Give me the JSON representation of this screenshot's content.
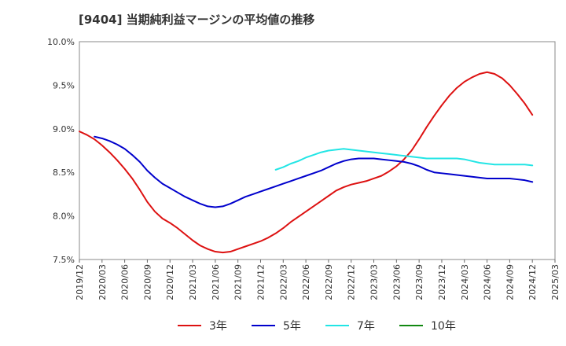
{
  "chart_data": {
    "type": "line",
    "title": "[9404]  当期純利益マージンの平均値の推移",
    "xlabel": "",
    "ylabel": "",
    "ylim": [
      7.5,
      10.0
    ],
    "y_ticks": [
      7.5,
      8.0,
      8.5,
      9.0,
      9.5,
      10.0
    ],
    "y_tick_labels": [
      "7.5%",
      "8.0%",
      "8.5%",
      "9.0%",
      "9.5%",
      "10.0%"
    ],
    "x_tick_labels": [
      "2019/12",
      "2020/03",
      "2020/06",
      "2020/09",
      "2020/12",
      "2021/03",
      "2021/06",
      "2021/09",
      "2021/12",
      "2022/03",
      "2022/06",
      "2022/09",
      "2022/12",
      "2023/03",
      "2023/06",
      "2023/09",
      "2023/12",
      "2024/03",
      "2024/06",
      "2024/09",
      "2024/12",
      "2025/03"
    ],
    "grid": true,
    "legend_position": "bottom",
    "colors": {
      "3年": "#dd1111",
      "5年": "#0000cc",
      "7年": "#22e5e5",
      "10年": "#118811"
    },
    "series": [
      {
        "name": "3年",
        "x": [
          "2019/12",
          "2020/01",
          "2020/02",
          "2020/03",
          "2020/04",
          "2020/05",
          "2020/06",
          "2020/07",
          "2020/08",
          "2020/09",
          "2020/10",
          "2020/11",
          "2020/12",
          "2021/01",
          "2021/02",
          "2021/03",
          "2021/04",
          "2021/05",
          "2021/06",
          "2021/07",
          "2021/08",
          "2021/09",
          "2021/10",
          "2021/11",
          "2021/12",
          "2022/01",
          "2022/02",
          "2022/03",
          "2022/04",
          "2022/05",
          "2022/06",
          "2022/07",
          "2022/08",
          "2022/09",
          "2022/10",
          "2022/11",
          "2022/12",
          "2023/01",
          "2023/02",
          "2023/03",
          "2023/04",
          "2023/05",
          "2023/06",
          "2023/07",
          "2023/08",
          "2023/09",
          "2023/10",
          "2023/11",
          "2023/12",
          "2024/01",
          "2024/02",
          "2024/03",
          "2024/04",
          "2024/05",
          "2024/06",
          "2024/07",
          "2024/08",
          "2024/09",
          "2024/10",
          "2024/11",
          "2024/12"
        ],
        "values": [
          8.97,
          8.93,
          8.88,
          8.81,
          8.73,
          8.64,
          8.54,
          8.43,
          8.3,
          8.16,
          8.05,
          7.97,
          7.92,
          7.86,
          7.79,
          7.72,
          7.66,
          7.62,
          7.59,
          7.58,
          7.59,
          7.62,
          7.65,
          7.68,
          7.71,
          7.75,
          7.8,
          7.86,
          7.93,
          7.99,
          8.05,
          8.11,
          8.17,
          8.23,
          8.29,
          8.33,
          8.36,
          8.38,
          8.4,
          8.43,
          8.46,
          8.51,
          8.57,
          8.65,
          8.75,
          8.88,
          9.02,
          9.15,
          9.27,
          9.38,
          9.47,
          9.54,
          9.59,
          9.63,
          9.65,
          9.63,
          9.58,
          9.5,
          9.4,
          9.29,
          9.16
        ]
      },
      {
        "name": "5年",
        "x": [
          "2020/02",
          "2020/03",
          "2020/04",
          "2020/05",
          "2020/06",
          "2020/07",
          "2020/08",
          "2020/09",
          "2020/10",
          "2020/11",
          "2020/12",
          "2021/01",
          "2021/02",
          "2021/03",
          "2021/04",
          "2021/05",
          "2021/06",
          "2021/07",
          "2021/08",
          "2021/09",
          "2021/10",
          "2021/11",
          "2021/12",
          "2022/01",
          "2022/02",
          "2022/03",
          "2022/04",
          "2022/05",
          "2022/06",
          "2022/07",
          "2022/08",
          "2022/09",
          "2022/10",
          "2022/11",
          "2022/12",
          "2023/01",
          "2023/02",
          "2023/03",
          "2023/04",
          "2023/05",
          "2023/06",
          "2023/07",
          "2023/08",
          "2023/09",
          "2023/10",
          "2023/11",
          "2023/12",
          "2024/01",
          "2024/02",
          "2024/03",
          "2024/04",
          "2024/05",
          "2024/06",
          "2024/07",
          "2024/08",
          "2024/09",
          "2024/10",
          "2024/11",
          "2024/12"
        ],
        "values": [
          8.91,
          8.89,
          8.86,
          8.82,
          8.77,
          8.7,
          8.62,
          8.52,
          8.44,
          8.37,
          8.32,
          8.27,
          8.22,
          8.18,
          8.14,
          8.11,
          8.1,
          8.11,
          8.14,
          8.18,
          8.22,
          8.25,
          8.28,
          8.31,
          8.34,
          8.37,
          8.4,
          8.43,
          8.46,
          8.49,
          8.52,
          8.56,
          8.6,
          8.63,
          8.65,
          8.66,
          8.66,
          8.66,
          8.65,
          8.64,
          8.63,
          8.62,
          8.6,
          8.57,
          8.53,
          8.5,
          8.49,
          8.48,
          8.47,
          8.46,
          8.45,
          8.44,
          8.43,
          8.43,
          8.43,
          8.43,
          8.42,
          8.41,
          8.39
        ]
      },
      {
        "name": "7年",
        "x": [
          "2022/02",
          "2022/03",
          "2022/04",
          "2022/05",
          "2022/06",
          "2022/07",
          "2022/08",
          "2022/09",
          "2022/10",
          "2022/11",
          "2022/12",
          "2023/01",
          "2023/02",
          "2023/03",
          "2023/04",
          "2023/05",
          "2023/06",
          "2023/07",
          "2023/08",
          "2023/09",
          "2023/10",
          "2023/11",
          "2023/12",
          "2024/01",
          "2024/02",
          "2024/03",
          "2024/04",
          "2024/05",
          "2024/06",
          "2024/07",
          "2024/08",
          "2024/09",
          "2024/10",
          "2024/11",
          "2024/12"
        ],
        "values": [
          8.53,
          8.56,
          8.6,
          8.63,
          8.67,
          8.7,
          8.73,
          8.75,
          8.76,
          8.77,
          8.76,
          8.75,
          8.74,
          8.73,
          8.72,
          8.71,
          8.7,
          8.69,
          8.68,
          8.67,
          8.66,
          8.66,
          8.66,
          8.66,
          8.66,
          8.65,
          8.63,
          8.61,
          8.6,
          8.59,
          8.59,
          8.59,
          8.59,
          8.59,
          8.58
        ]
      },
      {
        "name": "10年",
        "x": [],
        "values": []
      }
    ]
  }
}
